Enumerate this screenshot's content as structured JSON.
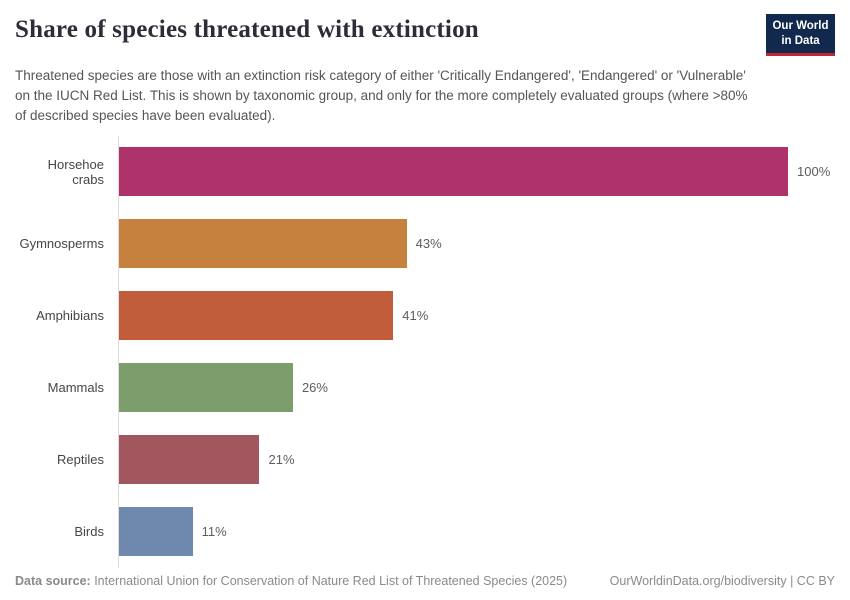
{
  "header": {
    "title": "Share of species threatened with extinction",
    "subtitle": "Threatened species are those with an extinction risk category of either 'Critically Endangered', 'Endangered' or 'Vulnerable' on the IUCN Red List. This is shown by taxonomic group, and only for the more completely evaluated groups (where >80% of described species have been evaluated).",
    "logo": {
      "line1": "Our World",
      "line2": "in Data",
      "background_color": "#12294e",
      "accent_color": "#c0272d"
    }
  },
  "chart_data": {
    "type": "bar",
    "orientation": "horizontal",
    "title": "Share of species threatened with extinction",
    "categories": [
      "Horsehoe crabs",
      "Gymnosperms",
      "Amphibians",
      "Mammals",
      "Reptiles",
      "Birds"
    ],
    "values": [
      100,
      43,
      41,
      26,
      21,
      11
    ],
    "value_labels": [
      "100%",
      "43%",
      "41%",
      "26%",
      "21%",
      "11%"
    ],
    "bar_colors": [
      "#ad336a",
      "#c5813d",
      "#c15d3a",
      "#7b9e6c",
      "#a2575f",
      "#6e88ae"
    ],
    "xlabel": "",
    "ylabel": "",
    "xlim": [
      0,
      100
    ],
    "grid": false,
    "legend": "none",
    "axis_line_color": "#dcdcdc"
  },
  "footer": {
    "data_source_label": "Data source:",
    "data_source_text": " International Union for Conservation of Nature Red List of Threatened Species (2025)",
    "right_text": "OurWorldinData.org/biodiversity | CC BY"
  }
}
